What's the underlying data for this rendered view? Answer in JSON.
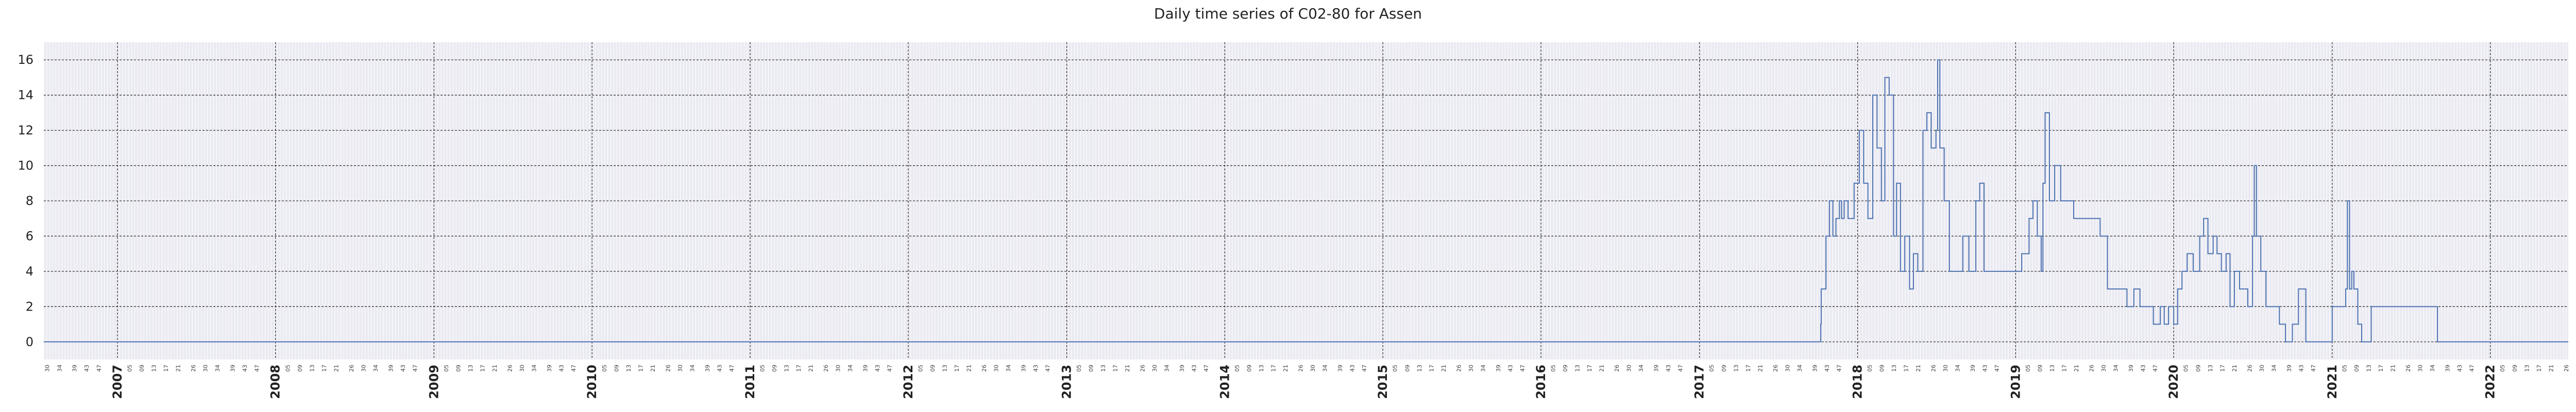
{
  "chart_data": {
    "type": "line",
    "title": "Daily time series of C02-80 for Assen",
    "xlabel": "",
    "ylabel": "",
    "xlim": [
      "2006-07-15",
      "2022-06-30"
    ],
    "ylim": [
      -1,
      17
    ],
    "yticks": [
      0,
      2,
      4,
      6,
      8,
      10,
      12,
      14,
      16
    ],
    "grid": true,
    "legend": "none",
    "colors": {
      "line": "#4c72b0",
      "background": "#eaeaf2",
      "major_grid": "#333333",
      "minor_grid": "#ffffff"
    },
    "year_ticks": [
      "2007",
      "2008",
      "2009",
      "2010",
      "2011",
      "2012",
      "2013",
      "2014",
      "2015",
      "2016",
      "2017",
      "2018",
      "2019",
      "2020",
      "2021",
      "2022"
    ],
    "week_ticks": [
      "05",
      "09",
      "13",
      "17",
      "21",
      "26",
      "30",
      "34",
      "39",
      "43",
      "47"
    ],
    "series": [
      {
        "x": [
          "2006-07-15",
          "2017-10-01",
          "2017-10-08",
          "2017-10-09",
          "2017-10-20",
          "2017-10-28",
          "2017-11-05",
          "2017-11-12",
          "2017-11-20",
          "2017-11-25",
          "2017-12-01",
          "2017-12-10",
          "2017-12-18",
          "2017-12-24",
          "2018-01-05",
          "2018-01-15",
          "2018-01-25",
          "2018-02-05",
          "2018-02-15",
          "2018-02-25",
          "2018-03-05",
          "2018-03-15",
          "2018-03-25",
          "2018-04-01",
          "2018-04-10",
          "2018-04-20",
          "2018-05-01",
          "2018-05-10",
          "2018-05-20",
          "2018-06-01",
          "2018-06-10",
          "2018-06-20",
          "2018-07-01",
          "2018-07-05",
          "2018-07-10",
          "2018-07-20",
          "2018-08-01",
          "2018-08-10",
          "2018-08-20",
          "2018-09-01",
          "2018-09-15",
          "2018-10-01",
          "2018-10-10",
          "2018-10-20",
          "2018-11-01",
          "2018-11-10",
          "2018-11-20",
          "2018-12-01",
          "2018-12-15",
          "2019-01-01",
          "2019-01-15",
          "2019-02-01",
          "2019-02-10",
          "2019-02-20",
          "2019-03-01",
          "2019-03-05",
          "2019-03-10",
          "2019-03-20",
          "2019-04-01",
          "2019-04-15",
          "2019-05-01",
          "2019-05-15",
          "2019-06-01",
          "2019-06-15",
          "2019-07-01",
          "2019-07-15",
          "2019-08-01",
          "2019-08-15",
          "2019-09-01",
          "2019-09-15",
          "2019-10-01",
          "2019-10-15",
          "2019-11-01",
          "2019-11-15",
          "2019-12-01",
          "2019-12-10",
          "2019-12-20",
          "2020-01-01",
          "2020-01-10",
          "2020-01-20",
          "2020-02-01",
          "2020-02-15",
          "2020-03-01",
          "2020-03-10",
          "2020-03-20",
          "2020-04-01",
          "2020-04-10",
          "2020-04-20",
          "2020-05-01",
          "2020-05-10",
          "2020-05-20",
          "2020-06-01",
          "2020-06-10",
          "2020-06-20",
          "2020-07-01",
          "2020-07-05",
          "2020-07-10",
          "2020-07-20",
          "2020-08-01",
          "2020-08-10",
          "2020-08-20",
          "2020-09-01",
          "2020-09-15",
          "2020-10-01",
          "2020-10-15",
          "2020-11-01",
          "2020-11-15",
          "2020-12-01",
          "2020-12-15",
          "2021-01-01",
          "2021-01-15",
          "2021-02-01",
          "2021-02-05",
          "2021-02-10",
          "2021-02-15",
          "2021-02-20",
          "2021-03-01",
          "2021-03-10",
          "2021-04-01",
          "2021-06-01",
          "2021-08-01",
          "2021-09-01",
          "2021-09-10",
          "2022-06-30"
        ],
        "values": [
          0,
          0,
          1,
          3,
          6,
          8,
          6,
          7,
          8,
          7,
          8,
          7,
          7,
          9,
          12,
          9,
          7,
          14,
          11,
          8,
          15,
          14,
          6,
          9,
          4,
          6,
          3,
          5,
          4,
          12,
          13,
          11,
          12,
          16,
          11,
          8,
          4,
          4,
          4,
          6,
          4,
          8,
          9,
          4,
          4,
          4,
          4,
          4,
          4,
          4,
          5,
          7,
          8,
          6,
          4,
          9,
          13,
          8,
          10,
          8,
          8,
          7,
          7,
          7,
          7,
          6,
          3,
          3,
          3,
          2,
          3,
          2,
          2,
          1,
          2,
          1,
          2,
          1,
          3,
          4,
          5,
          4,
          6,
          7,
          5,
          6,
          5,
          4,
          5,
          2,
          4,
          3,
          3,
          2,
          6,
          10,
          6,
          4,
          2,
          2,
          2,
          1,
          0,
          1,
          3,
          0,
          0,
          0,
          0,
          2,
          2,
          3,
          8,
          3,
          4,
          3,
          1,
          0,
          2,
          2,
          2,
          0,
          0,
          0
        ]
      }
    ]
  }
}
